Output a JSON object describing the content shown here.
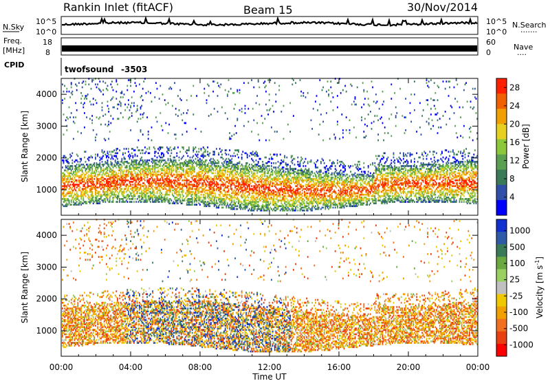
{
  "header": {
    "station": "Rankin Inlet (fitACF)",
    "beam": "Beam 15",
    "date": "30/Nov/2014"
  },
  "noise_panel": {
    "left_label": "N.Sky",
    "left_ticks": [
      "10^5",
      "10^0"
    ],
    "right_label": "N.Search",
    "right_ticks": [
      "10^5",
      "10^0"
    ]
  },
  "freq_panel": {
    "left_label_1": "Freq.",
    "left_label_2": "[MHz]",
    "left_ticks": [
      "18",
      "8"
    ],
    "right_label": "Nave",
    "right_ticks": [
      "60",
      "0"
    ]
  },
  "cpid_panel": {
    "label": "CPID",
    "program": "twofsound",
    "id": "-3503"
  },
  "colors": {
    "power": [
      "#0000ff",
      "#2f4fa8",
      "#3a7a58",
      "#5aa050",
      "#8cc83c",
      "#e8d020",
      "#f0a000",
      "#f06000",
      "#ff2000"
    ],
    "velocity": [
      "#1030d0",
      "#2f5aa8",
      "#3a7a58",
      "#6aa840",
      "#9ad060",
      "#c0c0c0",
      "#f0c800",
      "#f0a000",
      "#f07020",
      "#e84010",
      "#ff0000"
    ]
  },
  "chart_data": [
    {
      "type": "heatmap",
      "title": "",
      "xlabel": "",
      "ylabel": "Slant Range [km]",
      "y_ticks": [
        "1000",
        "2000",
        "3000",
        "4000"
      ],
      "ylim": [
        200,
        4500
      ],
      "x_ticks": [],
      "colorbar": {
        "label": "Power [dB]",
        "ticks": [
          "4",
          "8",
          "12",
          "16",
          "20",
          "24",
          "28"
        ],
        "range": [
          0,
          30
        ]
      }
    },
    {
      "type": "heatmap",
      "title": "",
      "xlabel": "Time UT",
      "ylabel": "Slant Range [km]",
      "y_ticks": [
        "1000",
        "2000",
        "3000",
        "4000"
      ],
      "ylim": [
        200,
        4500
      ],
      "x_ticks": [
        "00:00",
        "04:00",
        "08:00",
        "12:00",
        "16:00",
        "20:00",
        "00:00"
      ],
      "colorbar": {
        "label": "Velocity [m s",
        "label_sup": "-1",
        "label_end": "]",
        "ticks": [
          "1000",
          "500",
          "100",
          "25",
          "-25",
          "-100",
          "-500",
          "-1000"
        ],
        "range": [
          -1200,
          1200
        ]
      }
    }
  ]
}
